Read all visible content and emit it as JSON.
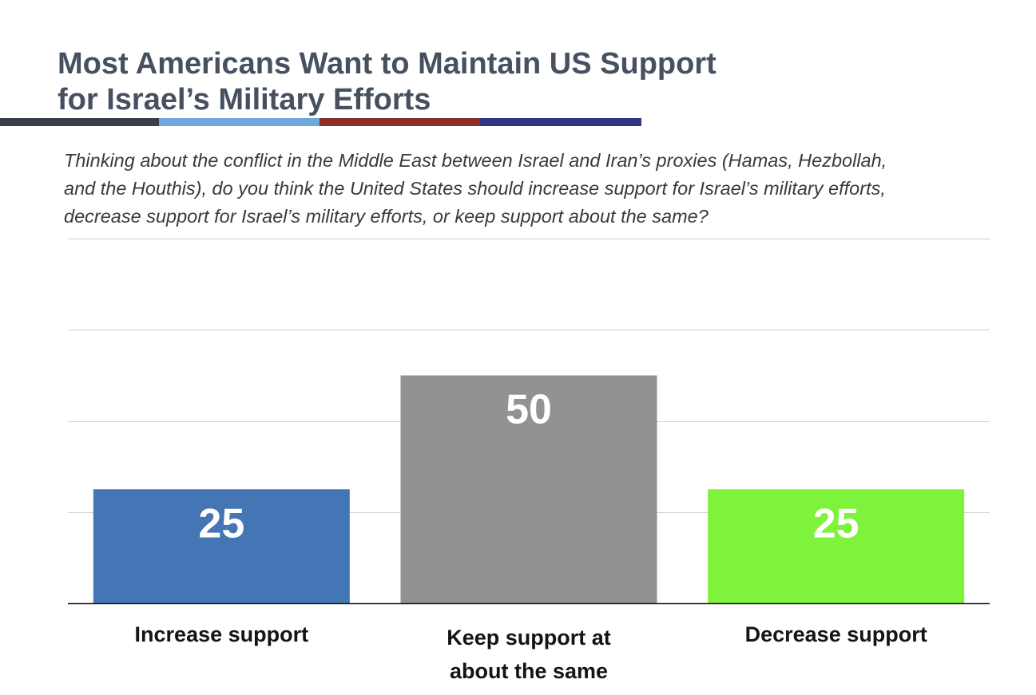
{
  "header": {
    "title_line1": "Most Americans Want to Maintain US Support",
    "title_line2": "for Israel’s Military Efforts",
    "rule_colors": [
      "#3a4049",
      "#6fa8dc",
      "#8b2e2b",
      "#2f3580"
    ]
  },
  "question": {
    "line1": "Thinking about the conflict in the Middle East between Israel and Iran’s proxies (Hamas, Hezbollah,",
    "line2": "and the Houthis), do you think the United States should increase support for Israel’s military efforts,",
    "line3": "decrease support for Israel’s military efforts, or keep support about the same?"
  },
  "chart_data": {
    "type": "bar",
    "categories": [
      "Increase support",
      "Keep support at about the same",
      "Decrease support"
    ],
    "category_lines": [
      [
        "Increase support"
      ],
      [
        "Keep support at",
        "about the same"
      ],
      [
        "Decrease support"
      ]
    ],
    "values": [
      25,
      50,
      25
    ],
    "colors": [
      "#4475b4",
      "#929292",
      "#7ff23c"
    ],
    "value_label_color": "#ffffff",
    "ylim": [
      0,
      100
    ],
    "gridlines": [
      0,
      20,
      40,
      60,
      80
    ],
    "grid": true,
    "axis_tick_labels_shown": false
  }
}
